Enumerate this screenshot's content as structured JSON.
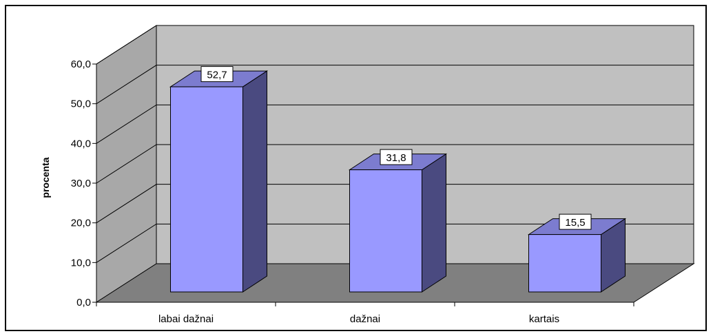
{
  "chart_data": {
    "type": "bar",
    "style": "3d-column",
    "categories": [
      "labai dažnai",
      "dažnai",
      "kartais"
    ],
    "values": [
      52.7,
      31.8,
      15.5
    ],
    "data_labels": [
      "52,7",
      "31,8",
      "15,5"
    ],
    "ylabel": "procenta",
    "ylim": [
      0,
      60
    ],
    "yticks": [
      "0,0",
      "10,0",
      "20,0",
      "30,0",
      "40,0",
      "50,0",
      "60,0"
    ],
    "grid": true,
    "legend": "none",
    "colors": {
      "bar_front": "#9999ff",
      "bar_top": "#7c7ccf",
      "bar_side": "#4a4a80",
      "back_wall": "#c0c0c0",
      "side_wall": "#a8a8a8",
      "floor": "#808080"
    }
  }
}
